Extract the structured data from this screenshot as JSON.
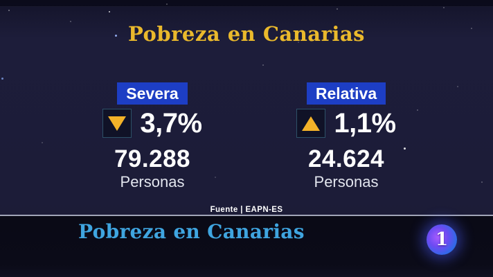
{
  "chart_data": {
    "type": "table",
    "title": "Pobreza en Canarias",
    "categories": [
      "Severa",
      "Relativa"
    ],
    "series": [
      {
        "name": "Variación (%)",
        "values": [
          -3.7,
          1.1
        ]
      },
      {
        "name": "Personas",
        "values": [
          79288,
          24624
        ]
      }
    ],
    "source": "Fuente | EAPN-ES",
    "legend_position": "none",
    "grid": false
  },
  "header": {
    "title": "Pobreza en Canarias"
  },
  "stats": [
    {
      "label": "Severa",
      "trend": "down",
      "trend_icon": "triangle-down-icon",
      "percent": "3,7%",
      "count": "79.288",
      "unit": "Personas"
    },
    {
      "label": "Relativa",
      "trend": "up",
      "trend_icon": "triangle-up-icon",
      "percent": "1,1%",
      "count": "24.624",
      "unit": "Personas"
    }
  ],
  "source": {
    "text": "Fuente | EAPN-ES"
  },
  "lower_third": {
    "title": "Pobreza en Canarias"
  },
  "channel": {
    "logo_text": "1"
  },
  "colors": {
    "background": "#1c1c38",
    "label_blue": "#1d3ec4",
    "arrow_amber": "#f3b229",
    "title_gold": "#eab92c",
    "lower_title_blue": "#3fa5e0",
    "strip_background": "#0a0a16",
    "divider": "#b9bdcf"
  }
}
